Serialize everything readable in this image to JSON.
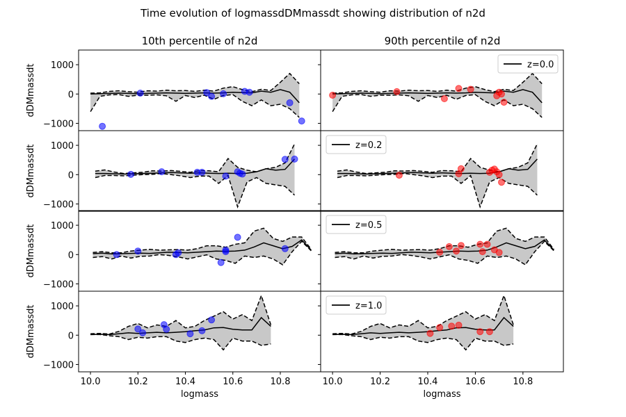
{
  "suptitle": "Time evolution of logmassdDMmassdt showing distribution of n2d",
  "column_titles": [
    "10th percentile of n2d",
    "90th percentile of n2d"
  ],
  "xlabel": "logmass",
  "ylabel": "dDMmassdt",
  "xticks": [
    "10.0",
    "10.2",
    "10.4",
    "10.6",
    "10.8"
  ],
  "yticks": [
    "1000",
    "0",
    "−1000"
  ],
  "legend_labels": [
    "z=0.0",
    "z=0.2",
    "z=0.5",
    "z=1.0"
  ],
  "colors": {
    "median_line": "#000000",
    "band_fill": "#c8c8c8",
    "left_points": "#0000ff",
    "right_points": "#ff0000"
  },
  "chart_data": {
    "type": "line",
    "xlim": [
      9.95,
      10.97
    ],
    "ylim": [
      -1250,
      1500
    ],
    "grid": false,
    "legend_location": [
      "top-right",
      "top-left",
      "top-left",
      "top-left"
    ],
    "rows": [
      {
        "label": "z=0.0",
        "median_x": [
          10.0,
          10.04,
          10.08,
          10.12,
          10.16,
          10.2,
          10.24,
          10.28,
          10.32,
          10.36,
          10.4,
          10.44,
          10.48,
          10.52,
          10.56,
          10.6,
          10.64,
          10.68,
          10.72,
          10.76,
          10.8,
          10.84,
          10.88
        ],
        "median_y": [
          0,
          10,
          20,
          30,
          20,
          10,
          20,
          30,
          40,
          30,
          20,
          30,
          40,
          30,
          40,
          60,
          50,
          40,
          100,
          60,
          150,
          60,
          -300
        ],
        "upper": [
          30,
          40,
          90,
          110,
          80,
          60,
          110,
          100,
          130,
          110,
          120,
          90,
          130,
          100,
          200,
          250,
          150,
          80,
          160,
          120,
          400,
          700,
          350
        ],
        "lower": [
          -600,
          -80,
          -30,
          -20,
          -80,
          -40,
          -40,
          -30,
          -60,
          -250,
          -50,
          -120,
          -40,
          -180,
          -50,
          -20,
          -250,
          -400,
          -200,
          -400,
          -350,
          -500,
          -800
        ],
        "left_points": {
          "x": [
            10.05,
            10.21,
            10.49,
            10.51,
            10.56,
            10.65,
            10.67,
            10.84,
            10.89
          ],
          "y": [
            -1100,
            30,
            50,
            -80,
            10,
            90,
            60,
            -300,
            -920
          ]
        },
        "right_points": {
          "x": [
            10.0,
            10.27,
            10.47,
            10.53,
            10.58,
            10.69,
            10.7,
            10.71,
            10.72
          ],
          "y": [
            -40,
            80,
            -160,
            190,
            160,
            -60,
            60,
            0,
            -280
          ]
        }
      },
      {
        "label": "z=0.2",
        "median_x": [
          10.02,
          10.06,
          10.1,
          10.14,
          10.18,
          10.22,
          10.26,
          10.3,
          10.34,
          10.38,
          10.42,
          10.46,
          10.5,
          10.54,
          10.58,
          10.62,
          10.66,
          10.7,
          10.74,
          10.78,
          10.82,
          10.86
        ],
        "median_y": [
          40,
          40,
          30,
          20,
          30,
          40,
          50,
          60,
          70,
          60,
          50,
          60,
          50,
          40,
          50,
          40,
          50,
          100,
          200,
          150,
          180,
          530
        ],
        "upper": [
          120,
          160,
          90,
          40,
          60,
          80,
          130,
          120,
          140,
          110,
          80,
          140,
          130,
          100,
          550,
          250,
          150,
          100,
          200,
          250,
          400,
          1050
        ],
        "lower": [
          -100,
          -30,
          -30,
          -40,
          -20,
          0,
          10,
          40,
          0,
          -40,
          -100,
          -50,
          -50,
          -300,
          -30,
          -1100,
          -250,
          -100,
          -300,
          -350,
          -400,
          -700
        ],
        "left_points": {
          "x": [
            10.17,
            10.3,
            10.45,
            10.47,
            10.57,
            10.62,
            10.63,
            10.64,
            10.82,
            10.86
          ],
          "y": [
            10,
            100,
            80,
            80,
            -50,
            100,
            50,
            20,
            520,
            530
          ]
        },
        "right_points": {
          "x": [
            10.28,
            10.53,
            10.54,
            10.66,
            10.67,
            10.68,
            10.69,
            10.7,
            10.71
          ],
          "y": [
            -20,
            30,
            200,
            80,
            150,
            190,
            100,
            0,
            -260
          ]
        }
      },
      {
        "label": "z=0.5",
        "median_x": [
          10.01,
          10.05,
          10.09,
          10.13,
          10.17,
          10.21,
          10.25,
          10.29,
          10.33,
          10.37,
          10.41,
          10.45,
          10.49,
          10.53,
          10.57,
          10.61,
          10.65,
          10.69,
          10.73,
          10.77,
          10.81,
          10.85,
          10.89,
          10.93
        ],
        "median_y": [
          30,
          50,
          20,
          30,
          40,
          50,
          40,
          60,
          80,
          70,
          60,
          80,
          100,
          120,
          110,
          120,
          150,
          260,
          400,
          300,
          200,
          280,
          500,
          150
        ],
        "upper": [
          70,
          100,
          60,
          60,
          120,
          150,
          180,
          150,
          160,
          170,
          150,
          200,
          300,
          300,
          250,
          350,
          400,
          800,
          900,
          550,
          450,
          600,
          600,
          180
        ],
        "lower": [
          -100,
          -70,
          -150,
          -50,
          -120,
          -60,
          -50,
          0,
          -30,
          -80,
          -150,
          -80,
          -10,
          -150,
          -200,
          -300,
          -50,
          -100,
          -50,
          -150,
          -350,
          100,
          450,
          130
        ],
        "left_points": {
          "x": [
            10.11,
            10.2,
            10.36,
            10.37,
            10.55,
            10.57,
            10.57,
            10.62,
            10.82
          ],
          "y": [
            0,
            120,
            0,
            60,
            -270,
            100,
            150,
            590,
            200
          ]
        },
        "right_points": {
          "x": [
            10.45,
            10.49,
            10.52,
            10.54,
            10.62,
            10.63,
            10.65,
            10.68,
            10.7
          ],
          "y": [
            80,
            270,
            120,
            310,
            350,
            100,
            350,
            160,
            70
          ]
        }
      },
      {
        "label": "z=1.0",
        "median_x": [
          10.0,
          10.04,
          10.08,
          10.12,
          10.16,
          10.2,
          10.24,
          10.28,
          10.32,
          10.36,
          10.4,
          10.44,
          10.48,
          10.52,
          10.56,
          10.6,
          10.64,
          10.68,
          10.72,
          10.76
        ],
        "median_y": [
          20,
          30,
          20,
          50,
          80,
          60,
          80,
          100,
          80,
          100,
          120,
          150,
          180,
          250,
          260,
          200,
          180,
          180,
          600,
          300
        ],
        "upper": [
          50,
          60,
          40,
          130,
          300,
          400,
          250,
          350,
          300,
          500,
          250,
          300,
          500,
          650,
          800,
          550,
          700,
          500,
          1350,
          350
        ],
        "lower": [
          20,
          20,
          -20,
          -50,
          -150,
          -70,
          -100,
          -50,
          -50,
          -200,
          -250,
          -150,
          -100,
          -150,
          -500,
          -100,
          -200,
          -200,
          -350,
          -300
        ],
        "left_points": {
          "x": [
            10.2,
            10.22,
            10.31,
            10.32,
            10.42,
            10.47,
            10.51
          ],
          "y": [
            210,
            80,
            360,
            200,
            50,
            150,
            520
          ]
        },
        "right_points": {
          "x": [
            10.41,
            10.45,
            10.5,
            10.53,
            10.62,
            10.66
          ],
          "y": [
            60,
            260,
            310,
            340,
            120,
            120
          ]
        }
      }
    ]
  }
}
